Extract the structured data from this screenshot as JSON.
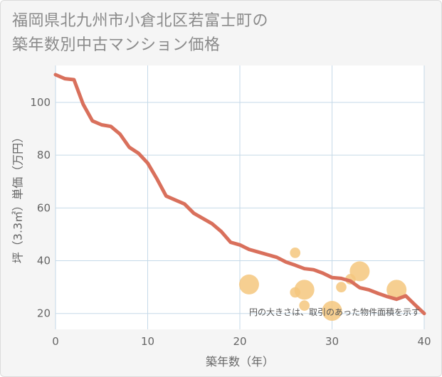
{
  "title_lines": [
    "福岡県北九州市小倉北区若富士町の",
    "築年数別中古マンション価格"
  ],
  "chart_data": {
    "type": "line",
    "xlabel": "築年数（年）",
    "ylabel": "坪（3.3㎡）単価（万円）",
    "xlim": [
      0,
      40
    ],
    "ylim": [
      14,
      114
    ],
    "xticks": [
      0,
      10,
      20,
      30,
      40
    ],
    "yticks": [
      20,
      40,
      60,
      80,
      100
    ],
    "grid": true,
    "annotation": "円の大きさは、取引のあった物件面積を示す",
    "colors": {
      "line": "#d9705c",
      "bubble": "#f5c77e",
      "plot_bg": "#ffffff",
      "grid": "#c5d9e8"
    },
    "series": [
      {
        "type": "line",
        "x": [
          0,
          1,
          2,
          3,
          4,
          5,
          6,
          7,
          8,
          9,
          10,
          11,
          12,
          13,
          14,
          15,
          16,
          17,
          18,
          19,
          20,
          21,
          22,
          23,
          24,
          25,
          26,
          27,
          28,
          29,
          30,
          31,
          32,
          33,
          34,
          35,
          36,
          37,
          38,
          39,
          40
        ],
        "y": [
          110.5,
          109,
          108.6,
          99.3,
          93,
          91.5,
          90.9,
          88,
          83,
          80.7,
          77,
          71,
          64.5,
          63,
          61.5,
          58,
          56,
          54,
          51,
          47,
          46,
          44.3,
          43.3,
          42.3,
          41.3,
          39.5,
          38.3,
          37,
          36.6,
          35.3,
          33.6,
          33.3,
          32.3,
          29.8,
          29,
          27.6,
          26.4,
          25.4,
          26.7,
          23.3,
          20
        ]
      },
      {
        "type": "scatter",
        "note": "bubble size = transaction floor area (relative)",
        "points": [
          {
            "x": 21,
            "y": 31,
            "size": 1.0
          },
          {
            "x": 26,
            "y": 43,
            "size": 0.3
          },
          {
            "x": 26,
            "y": 28,
            "size": 0.3
          },
          {
            "x": 27,
            "y": 29,
            "size": 1.0
          },
          {
            "x": 27,
            "y": 23,
            "size": 0.3
          },
          {
            "x": 30,
            "y": 21,
            "size": 1.0
          },
          {
            "x": 31,
            "y": 30,
            "size": 0.3
          },
          {
            "x": 32,
            "y": 33,
            "size": 0.3
          },
          {
            "x": 33,
            "y": 36,
            "size": 1.0
          },
          {
            "x": 37,
            "y": 29,
            "size": 1.0
          }
        ]
      }
    ]
  }
}
